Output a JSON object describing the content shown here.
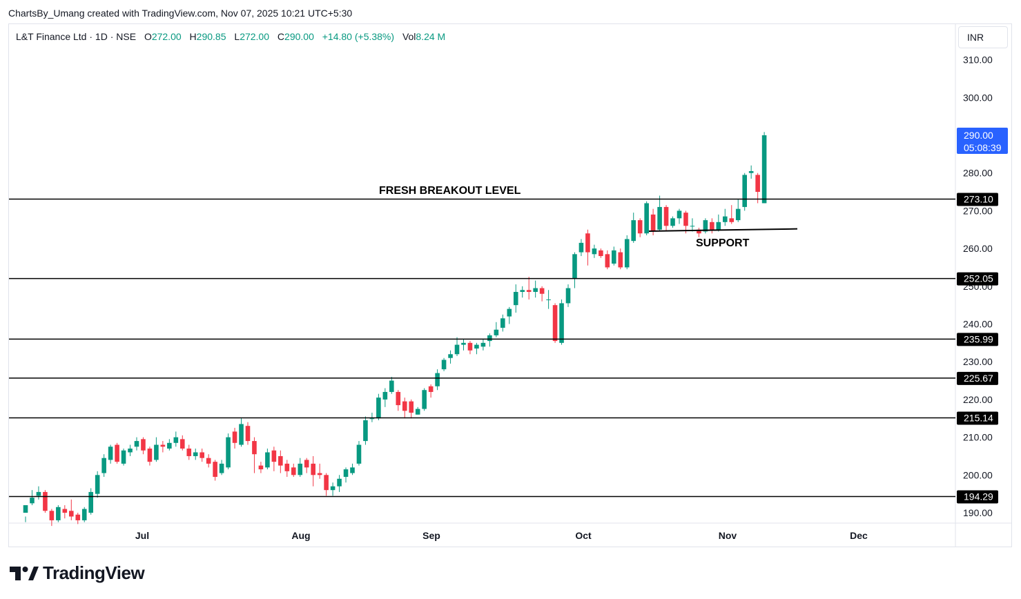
{
  "header": {
    "text": "ChartsBy_Umang created with TradingView.com, Nov 07, 2025 10:21 UTC+5:30"
  },
  "legend": {
    "symbol": "L&T Finance Ltd · 1D · NSE",
    "o_label": "O",
    "o_value": "272.00",
    "h_label": "H",
    "h_value": "290.85",
    "l_label": "L",
    "l_value": "272.00",
    "c_label": "C",
    "c_value": "290.00",
    "change": "+14.80 (+5.38%)",
    "vol_label": "Vol",
    "vol_value": "8.24 M"
  },
  "currency": "INR",
  "brand": {
    "name": "TradingView"
  },
  "colors": {
    "up": "#089981",
    "down": "#f23645",
    "line": "#000000",
    "price_tag": "#2962ff",
    "axis_text": "#131722"
  },
  "chart_data": {
    "type": "candlestick",
    "y_axis": {
      "ticks": [
        310,
        300,
        280,
        270,
        260,
        250,
        240,
        230,
        220,
        210,
        200,
        190
      ],
      "ylim": [
        187.5,
        314.5
      ]
    },
    "x_axis": {
      "month_labels": [
        "Jul",
        "Aug",
        "Sep",
        "Oct",
        "Nov",
        "Dec"
      ]
    },
    "current_price": {
      "value": "290.00",
      "countdown": "05:08:39"
    },
    "horizontal_levels": [
      {
        "value": 273.1,
        "label": "273.10"
      },
      {
        "value": 252.05,
        "label": "252.05"
      },
      {
        "value": 235.99,
        "label": "235.99"
      },
      {
        "value": 225.67,
        "label": "225.67"
      },
      {
        "value": 215.14,
        "label": "215.14"
      },
      {
        "value": 194.29,
        "label": "194.29"
      }
    ],
    "annotations": [
      {
        "text": "FRESH BREAKOUT LEVEL"
      },
      {
        "text": "SUPPORT",
        "support_line": [
          264.6,
          265.2
        ]
      }
    ],
    "candles": [
      [
        190.0,
        192.0,
        189.0,
        187.5
      ],
      [
        192.5,
        194.0,
        196.0,
        192.0
      ],
      [
        194.5,
        195.5,
        197.0,
        193.5
      ],
      [
        195.5,
        190.5,
        196.0,
        190.0
      ],
      [
        190.5,
        188.0,
        191.0,
        186.5
      ],
      [
        188.0,
        191.5,
        192.0,
        187.5
      ],
      [
        191.0,
        190.0,
        192.0,
        188.5
      ],
      [
        190.5,
        189.0,
        193.5,
        188.0
      ],
      [
        189.5,
        188.0,
        190.0,
        187.0
      ],
      [
        188.0,
        191.0,
        191.5,
        187.5
      ],
      [
        190.0,
        195.5,
        196.5,
        189.5
      ],
      [
        195.0,
        200.0,
        201.0,
        194.0
      ],
      [
        200.5,
        204.5,
        205.5,
        199.5
      ],
      [
        204.0,
        207.5,
        208.0,
        203.0
      ],
      [
        208.0,
        203.5,
        208.5,
        203.0
      ],
      [
        203.0,
        206.5,
        207.0,
        202.5
      ],
      [
        206.0,
        207.0,
        208.0,
        205.0
      ],
      [
        207.5,
        209.0,
        210.0,
        206.5
      ],
      [
        209.5,
        206.5,
        210.0,
        205.5
      ],
      [
        207.0,
        203.5,
        207.5,
        202.5
      ],
      [
        204.0,
        208.0,
        210.0,
        203.5
      ],
      [
        208.0,
        207.5,
        209.0,
        206.0
      ],
      [
        207.0,
        208.5,
        209.5,
        206.5
      ],
      [
        208.5,
        210.0,
        211.5,
        207.5
      ],
      [
        209.5,
        207.0,
        210.5,
        206.5
      ],
      [
        207.0,
        205.0,
        208.0,
        204.0
      ],
      [
        205.0,
        206.0,
        207.0,
        204.0
      ],
      [
        206.0,
        204.5,
        207.0,
        203.5
      ],
      [
        204.5,
        203.0,
        205.5,
        202.0
      ],
      [
        203.5,
        199.5,
        204.0,
        198.5
      ],
      [
        200.5,
        203.0,
        204.0,
        200.0
      ],
      [
        202.0,
        210.0,
        211.0,
        201.5
      ],
      [
        211.5,
        208.5,
        212.5,
        207.0
      ],
      [
        208.0,
        213.5,
        215.0,
        207.5
      ],
      [
        213.0,
        209.0,
        214.0,
        208.0
      ],
      [
        209.0,
        205.5,
        210.0,
        200.5
      ],
      [
        202.5,
        201.5,
        203.5,
        200.5
      ],
      [
        202.0,
        206.0,
        207.0,
        201.5
      ],
      [
        206.5,
        203.5,
        207.5,
        201.0
      ],
      [
        205.0,
        202.5,
        206.5,
        200.5
      ],
      [
        203.0,
        201.0,
        204.0,
        199.5
      ],
      [
        202.0,
        200.0,
        203.0,
        199.5
      ],
      [
        200.0,
        203.0,
        204.5,
        199.5
      ],
      [
        204.0,
        202.0,
        204.5,
        200.5
      ],
      [
        203.0,
        200.0,
        205.0,
        197.0
      ],
      [
        200.5,
        200.0,
        203.0,
        199.0
      ],
      [
        200.0,
        196.0,
        200.5,
        194.5
      ],
      [
        196.0,
        197.0,
        198.0,
        194.5
      ],
      [
        197.0,
        199.0,
        200.0,
        195.5
      ],
      [
        199.5,
        201.5,
        202.0,
        198.0
      ],
      [
        200.5,
        202.0,
        203.0,
        200.0
      ],
      [
        203.0,
        208.0,
        209.0,
        202.5
      ],
      [
        209.0,
        214.5,
        215.5,
        208.0
      ],
      [
        215.0,
        215.0,
        216.5,
        214.0
      ],
      [
        215.0,
        220.5,
        221.5,
        214.5
      ],
      [
        220.0,
        222.0,
        223.0,
        218.0
      ],
      [
        222.0,
        225.0,
        226.0,
        221.5
      ],
      [
        222.0,
        218.5,
        222.5,
        217.0
      ],
      [
        219.5,
        217.0,
        220.5,
        215.0
      ],
      [
        219.5,
        216.5,
        220.0,
        215.0
      ],
      [
        216.0,
        217.5,
        218.0,
        216.0
      ],
      [
        217.5,
        222.5,
        223.0,
        217.0
      ],
      [
        223.5,
        222.0,
        224.0,
        220.5
      ],
      [
        223.5,
        227.0,
        228.0,
        222.5
      ],
      [
        228.0,
        230.5,
        231.0,
        227.5
      ],
      [
        231.0,
        232.0,
        233.0,
        229.5
      ],
      [
        232.0,
        234.5,
        236.5,
        231.5
      ],
      [
        234.5,
        235.0,
        236.0,
        233.0
      ],
      [
        235.0,
        233.0,
        235.5,
        232.0
      ],
      [
        233.5,
        234.5,
        235.0,
        232.0
      ],
      [
        234.0,
        235.0,
        236.0,
        233.0
      ],
      [
        235.5,
        237.0,
        237.5,
        234.0
      ],
      [
        237.0,
        238.5,
        240.5,
        236.5
      ],
      [
        239.0,
        241.5,
        242.5,
        238.0
      ],
      [
        242.0,
        244.0,
        244.5,
        240.0
      ],
      [
        245.0,
        248.5,
        250.5,
        243.0
      ],
      [
        248.5,
        249.0,
        250.0,
        247.0
      ],
      [
        249.0,
        248.5,
        252.5,
        246.5
      ],
      [
        248.5,
        249.5,
        251.5,
        247.0
      ],
      [
        249.5,
        248.0,
        250.0,
        246.0
      ],
      [
        246.5,
        246.5,
        249.0,
        244.0
      ],
      [
        245.0,
        235.5,
        245.5,
        235.0
      ],
      [
        235.0,
        245.5,
        246.5,
        234.5
      ],
      [
        245.5,
        249.5,
        250.5,
        244.5
      ],
      [
        252.0,
        258.5,
        259.0,
        249.5
      ],
      [
        259.0,
        261.5,
        262.5,
        258.0
      ],
      [
        264.0,
        259.0,
        265.0,
        255.5
      ],
      [
        258.5,
        260.0,
        261.0,
        257.5
      ],
      [
        259.5,
        258.0,
        260.0,
        257.5
      ],
      [
        258.5,
        255.0,
        259.5,
        254.5
      ],
      [
        256.0,
        259.5,
        260.5,
        255.5
      ],
      [
        259.0,
        255.0,
        260.0,
        254.5
      ],
      [
        255.0,
        262.5,
        263.5,
        254.5
      ],
      [
        262.0,
        267.5,
        269.5,
        261.5
      ],
      [
        267.5,
        264.0,
        268.0,
        263.0
      ],
      [
        264.0,
        272.0,
        272.5,
        263.5
      ],
      [
        269.0,
        264.5,
        270.5,
        263.5
      ],
      [
        265.0,
        271.0,
        274.0,
        264.5
      ],
      [
        271.0,
        266.0,
        271.5,
        264.5
      ],
      [
        266.0,
        268.0,
        268.5,
        265.5
      ],
      [
        268.0,
        270.0,
        270.5,
        266.5
      ],
      [
        269.5,
        266.0,
        270.0,
        264.0
      ],
      [
        266.0,
        266.0,
        268.0,
        264.5
      ],
      [
        265.0,
        264.0,
        265.5,
        263.0
      ],
      [
        264.5,
        267.5,
        268.0,
        264.0
      ],
      [
        267.0,
        265.0,
        268.0,
        264.0
      ],
      [
        265.0,
        267.0,
        269.0,
        264.5
      ],
      [
        267.0,
        268.5,
        270.5,
        266.0
      ],
      [
        268.0,
        267.0,
        271.5,
        266.5
      ],
      [
        267.5,
        270.5,
        273.0,
        267.0
      ],
      [
        271.0,
        279.5,
        280.0,
        270.0
      ],
      [
        280.0,
        280.5,
        282.0,
        278.5
      ],
      [
        279.5,
        275.0,
        280.0,
        272.0
      ],
      [
        272.0,
        290.0,
        290.85,
        272.0
      ]
    ]
  }
}
